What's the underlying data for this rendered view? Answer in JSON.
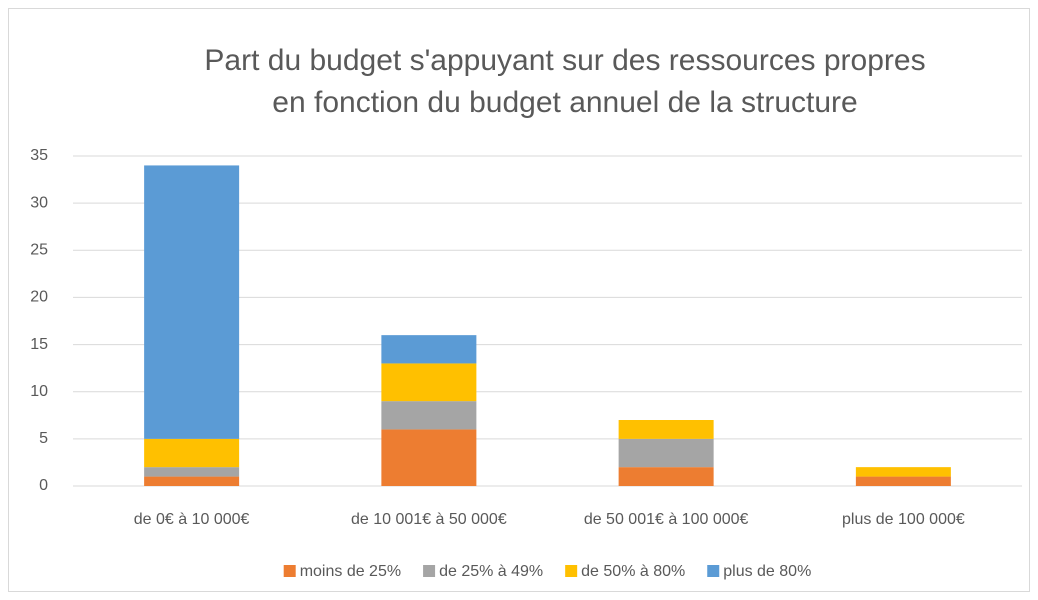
{
  "chart_data": {
    "type": "stacked_bar",
    "title": [
      "Part du budget s'appuyant sur des ressources propres",
      "en fonction du budget annuel de la structure"
    ],
    "categories": [
      "de 0€ à 10 000€",
      "de 10 001€ à 50 000€",
      "de 50 001€ à 100 000€",
      "plus de 100 000€"
    ],
    "series": [
      {
        "name": "moins de 25%",
        "color": "#ed7d31",
        "values": [
          1,
          6,
          2,
          1
        ]
      },
      {
        "name": "de 25% à 49%",
        "color": "#a5a5a5",
        "values": [
          1,
          3,
          3,
          0
        ]
      },
      {
        "name": "de 50% à 80%",
        "color": "#ffc000",
        "values": [
          3,
          4,
          2,
          1
        ]
      },
      {
        "name": "plus de 80%",
        "color": "#5b9bd5",
        "values": [
          29,
          3,
          0,
          0
        ]
      }
    ],
    "ylim": [
      0,
      35
    ],
    "yticks": [
      0,
      5,
      10,
      15,
      20,
      25,
      30,
      35
    ],
    "grid": true,
    "legend": "bottom"
  }
}
